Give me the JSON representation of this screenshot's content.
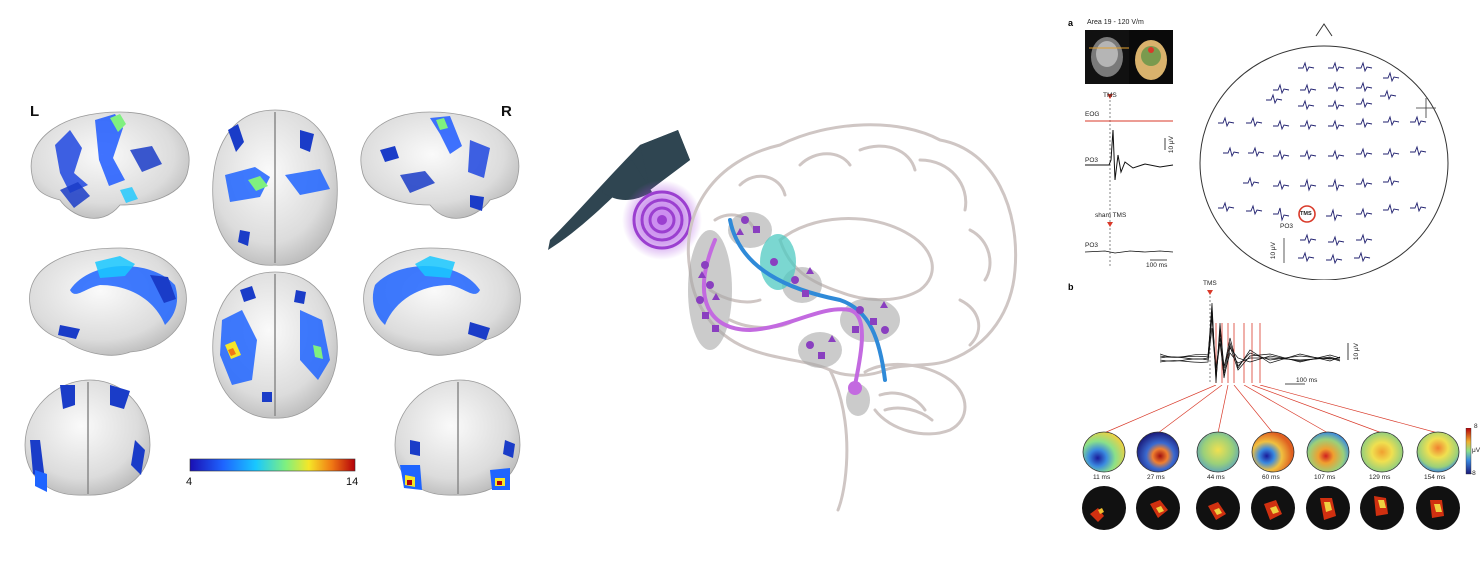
{
  "panel_left": {
    "hemisphere_left": "L",
    "hemisphere_right": "R",
    "colorbar_min": "4",
    "colorbar_max": "14",
    "colorbar_colors": [
      "#1a0fb3",
      "#1e64ff",
      "#19c8ff",
      "#7ff07f",
      "#f5e628",
      "#f07814",
      "#b4000a"
    ]
  },
  "panel_center": {
    "colors": {
      "coil": "#2f4551",
      "stim": "#9b3fd0",
      "path_blue": "#2f8ad8",
      "path_purple": "#c36ae0",
      "brain_outline": "#cfc6c4",
      "node": "#8a3fc0",
      "region": "#a9a9a9",
      "teal": "#4fc9c1"
    }
  },
  "panel_right": {
    "label_a": "a",
    "label_b": "b",
    "area_text": "Area 19 - 120 V/m",
    "tms_label": "TMS",
    "eog_label": "EOG",
    "po3_label": "PO3",
    "sham_label": "sham TMS",
    "po3_label_2": "PO3",
    "scale_10uv": "10 μV",
    "scale_100ms": "100 ms",
    "head_po3": "PO3",
    "head_tms": "TMS",
    "head_scale": "10 μV",
    "b_tms_label": "TMS",
    "b_scale_10uv": "10 μV",
    "b_scale_100ms": "100 ms",
    "topo_times": [
      "11 ms",
      "27 ms",
      "44 ms",
      "60 ms",
      "107 ms",
      "129 ms",
      "154 ms"
    ],
    "topo_scale_max": "8",
    "topo_scale_min": "-8",
    "topo_unit": "μV",
    "colors": {
      "trace": "#1f1f6e",
      "eog": "#d93a2a",
      "marker": "#d93a2a"
    }
  }
}
